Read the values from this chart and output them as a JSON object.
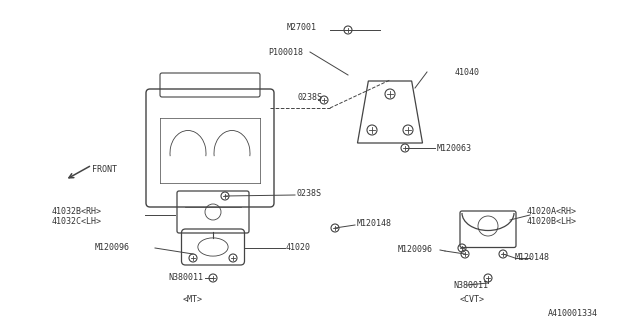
{
  "bg_color": "#ffffff",
  "line_color": "#444444",
  "text_color": "#333333",
  "figsize": [
    6.4,
    3.2
  ],
  "dpi": 100,
  "labels": [
    [
      "M27001",
      287,
      27,
      "left"
    ],
    [
      "P100018",
      268,
      52,
      "left"
    ],
    [
      "41040",
      455,
      72,
      "left"
    ],
    [
      "0238S",
      297,
      97,
      "left"
    ],
    [
      "M120063",
      437,
      148,
      "left"
    ],
    [
      "0238S",
      296,
      193,
      "left"
    ],
    [
      "41032B<RH>",
      52,
      211,
      "left"
    ],
    [
      "41032C<LH>",
      52,
      221,
      "left"
    ],
    [
      "M120148",
      357,
      223,
      "left"
    ],
    [
      "41020",
      286,
      247,
      "left"
    ],
    [
      "M120096",
      95,
      247,
      "left"
    ],
    [
      "N380011",
      168,
      278,
      "left"
    ],
    [
      "M120096",
      398,
      249,
      "left"
    ],
    [
      "M120148",
      515,
      258,
      "left"
    ],
    [
      "41020A<RH>",
      527,
      211,
      "left"
    ],
    [
      "41020B<LH>",
      527,
      221,
      "left"
    ],
    [
      "N380011",
      453,
      285,
      "left"
    ],
    [
      "<MT>",
      183,
      300,
      "left"
    ],
    [
      "<CVT>",
      460,
      300,
      "left"
    ],
    [
      "A410001334",
      548,
      314,
      "left"
    ],
    [
      "FRONT",
      92,
      169,
      "left"
    ]
  ]
}
